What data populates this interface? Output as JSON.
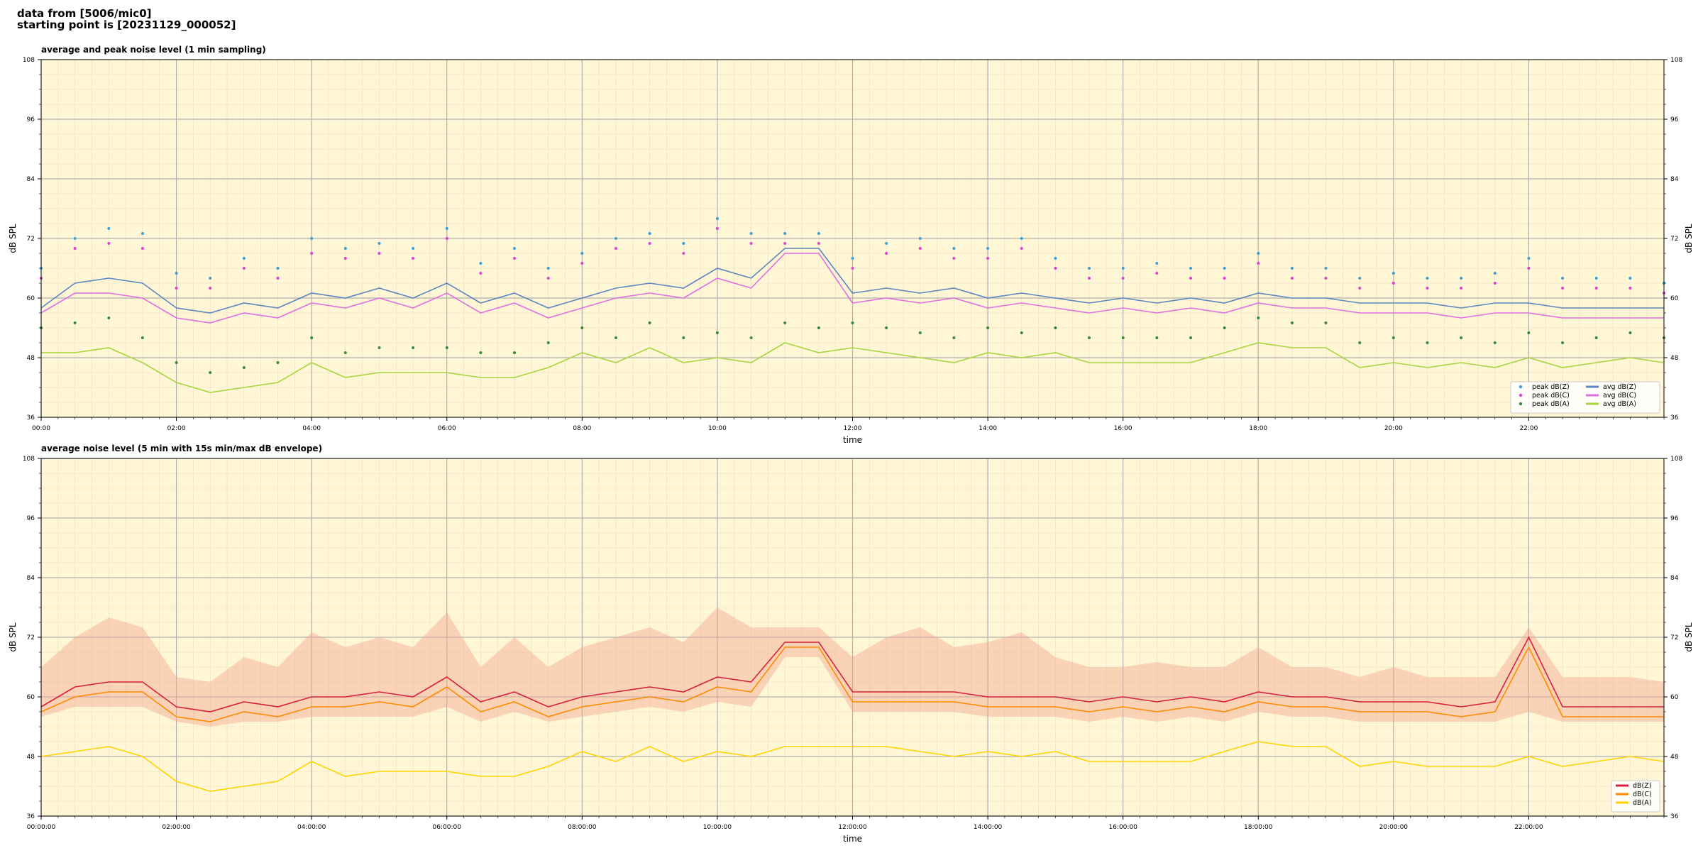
{
  "header": {
    "line1": "data from [5006/mic0]",
    "line2": "starting point is [20231129_000052]"
  },
  "colors": {
    "background_plot": "#fff6d6",
    "peak_z": "#3a9fd8",
    "peak_c": "#e040d0",
    "peak_a": "#3a8a3a",
    "avg_z": "#5b86c0",
    "avg_c": "#e070e0",
    "avg_a": "#a8d440",
    "env": "#f4a890",
    "db_z": "#d8203c",
    "db_c": "#ff8a00",
    "db_a": "#ffd400"
  },
  "chart_data": [
    {
      "type": "line",
      "title": "average and peak noise level (1 min sampling)",
      "xlabel": "time",
      "ylabel": "dB SPL",
      "ylim": [
        36,
        108
      ],
      "xlim_hours": [
        0,
        24
      ],
      "yticks": [
        "36",
        "48",
        "60",
        "72",
        "84",
        "96",
        "108"
      ],
      "xticks": [
        "00:00",
        "02:00",
        "04:00",
        "06:00",
        "08:00",
        "10:00",
        "12:00",
        "14:00",
        "16:00",
        "18:00",
        "20:00",
        "22:00"
      ],
      "grid": true,
      "legend_position": "bottom-right",
      "legend": [
        {
          "label": "peak dB(Z)",
          "kind": "marker",
          "color_key": "peak_z"
        },
        {
          "label": "peak dB(C)",
          "kind": "marker",
          "color_key": "peak_c"
        },
        {
          "label": "peak dB(A)",
          "kind": "marker",
          "color_key": "peak_a"
        },
        {
          "label": "avg dB(Z)",
          "kind": "line",
          "color_key": "avg_z"
        },
        {
          "label": "avg dB(C)",
          "kind": "line",
          "color_key": "avg_c"
        },
        {
          "label": "avg dB(A)",
          "kind": "line",
          "color_key": "avg_a"
        }
      ],
      "x": [
        0.0,
        0.5,
        1.0,
        1.5,
        2.0,
        2.5,
        3.0,
        3.5,
        4.0,
        4.5,
        5.0,
        5.5,
        6.0,
        6.5,
        7.0,
        7.5,
        8.0,
        8.5,
        9.0,
        9.5,
        10.0,
        10.5,
        11.0,
        11.5,
        12.0,
        12.5,
        13.0,
        13.5,
        14.0,
        14.5,
        15.0,
        15.5,
        16.0,
        16.5,
        17.0,
        17.5,
        18.0,
        18.5,
        19.0,
        19.5,
        20.0,
        20.5,
        21.0,
        21.5,
        22.0,
        22.5,
        23.0,
        23.5,
        24.0
      ],
      "series": [
        {
          "name": "avg dB(Z)",
          "color_key": "avg_z",
          "values": [
            58,
            63,
            64,
            63,
            58,
            57,
            59,
            58,
            61,
            60,
            62,
            60,
            63,
            59,
            61,
            58,
            60,
            62,
            63,
            62,
            66,
            64,
            70,
            70,
            61,
            62,
            61,
            62,
            60,
            61,
            60,
            59,
            60,
            59,
            60,
            59,
            61,
            60,
            60,
            59,
            59,
            59,
            58,
            59,
            59,
            58,
            58,
            58,
            58
          ]
        },
        {
          "name": "avg dB(C)",
          "color_key": "avg_c",
          "values": [
            57,
            61,
            61,
            60,
            56,
            55,
            57,
            56,
            59,
            58,
            60,
            58,
            61,
            57,
            59,
            56,
            58,
            60,
            61,
            60,
            64,
            62,
            69,
            69,
            59,
            60,
            59,
            60,
            58,
            59,
            58,
            57,
            58,
            57,
            58,
            57,
            59,
            58,
            58,
            57,
            57,
            57,
            56,
            57,
            57,
            56,
            56,
            56,
            56
          ]
        },
        {
          "name": "avg dB(A)",
          "color_key": "avg_a",
          "values": [
            49,
            49,
            50,
            47,
            43,
            41,
            42,
            43,
            47,
            44,
            45,
            45,
            45,
            44,
            44,
            46,
            49,
            47,
            50,
            47,
            48,
            47,
            51,
            49,
            50,
            49,
            48,
            47,
            49,
            48,
            49,
            47,
            47,
            47,
            47,
            49,
            51,
            50,
            50,
            46,
            47,
            46,
            47,
            46,
            48,
            46,
            47,
            48,
            47
          ]
        },
        {
          "name": "peak dB(Z)",
          "color_key": "peak_z",
          "kind": "scatter",
          "values": [
            66,
            72,
            74,
            73,
            65,
            64,
            68,
            66,
            72,
            70,
            71,
            70,
            74,
            67,
            70,
            66,
            69,
            72,
            73,
            71,
            76,
            73,
            73,
            73,
            68,
            71,
            72,
            70,
            70,
            72,
            68,
            66,
            66,
            67,
            66,
            66,
            69,
            66,
            66,
            64,
            65,
            64,
            64,
            65,
            68,
            64,
            64,
            64,
            63
          ]
        },
        {
          "name": "peak dB(C)",
          "color_key": "peak_c",
          "kind": "scatter",
          "values": [
            64,
            70,
            71,
            70,
            62,
            62,
            66,
            64,
            69,
            68,
            69,
            68,
            72,
            65,
            68,
            64,
            67,
            70,
            71,
            69,
            74,
            71,
            71,
            71,
            66,
            69,
            70,
            68,
            68,
            70,
            66,
            64,
            64,
            65,
            64,
            64,
            67,
            64,
            64,
            62,
            63,
            62,
            62,
            63,
            66,
            62,
            62,
            62,
            61
          ]
        },
        {
          "name": "peak dB(A)",
          "color_key": "peak_a",
          "kind": "scatter",
          "values": [
            54,
            55,
            56,
            52,
            47,
            45,
            46,
            47,
            52,
            49,
            50,
            50,
            50,
            49,
            49,
            51,
            54,
            52,
            55,
            52,
            53,
            52,
            55,
            54,
            55,
            54,
            53,
            52,
            54,
            53,
            54,
            52,
            52,
            52,
            52,
            54,
            56,
            55,
            55,
            51,
            52,
            51,
            52,
            51,
            53,
            51,
            52,
            53,
            52
          ]
        }
      ]
    },
    {
      "type": "line",
      "title": "average noise level (5 min with 15s min/max dB envelope)",
      "xlabel": "time",
      "ylabel": "dB SPL",
      "ylim": [
        36,
        108
      ],
      "xlim_hours": [
        0,
        24
      ],
      "yticks": [
        "36",
        "48",
        "60",
        "72",
        "84",
        "96",
        "108"
      ],
      "xticks": [
        "00:00:00",
        "02:00:00",
        "04:00:00",
        "06:00:00",
        "08:00:00",
        "10:00:00",
        "12:00:00",
        "14:00:00",
        "16:00:00",
        "18:00:00",
        "20:00:00",
        "22:00:00"
      ],
      "grid": true,
      "legend_position": "bottom-right",
      "legend": [
        {
          "label": "dB(Z)",
          "kind": "line",
          "color_key": "db_z"
        },
        {
          "label": "dB(C)",
          "kind": "line",
          "color_key": "db_c"
        },
        {
          "label": "dB(A)",
          "kind": "line",
          "color_key": "db_a"
        }
      ],
      "x": [
        0.0,
        0.5,
        1.0,
        1.5,
        2.0,
        2.5,
        3.0,
        3.5,
        4.0,
        4.5,
        5.0,
        5.5,
        6.0,
        6.5,
        7.0,
        7.5,
        8.0,
        8.5,
        9.0,
        9.5,
        10.0,
        10.5,
        11.0,
        11.5,
        12.0,
        12.5,
        13.0,
        13.5,
        14.0,
        14.5,
        15.0,
        15.5,
        16.0,
        16.5,
        17.0,
        17.5,
        18.0,
        18.5,
        19.0,
        19.5,
        20.0,
        20.5,
        21.0,
        21.5,
        22.0,
        22.5,
        23.0,
        23.5,
        24.0
      ],
      "series": [
        {
          "name": "dB(Z)",
          "color_key": "db_z",
          "values": [
            58,
            62,
            63,
            63,
            58,
            57,
            59,
            58,
            60,
            60,
            61,
            60,
            64,
            59,
            61,
            58,
            60,
            61,
            62,
            61,
            64,
            63,
            71,
            71,
            61,
            61,
            61,
            61,
            60,
            60,
            60,
            59,
            60,
            59,
            60,
            59,
            61,
            60,
            60,
            59,
            59,
            59,
            58,
            59,
            72,
            58,
            58,
            58,
            58
          ]
        },
        {
          "name": "dB(C)",
          "color_key": "db_c",
          "values": [
            57,
            60,
            61,
            61,
            56,
            55,
            57,
            56,
            58,
            58,
            59,
            58,
            62,
            57,
            59,
            56,
            58,
            59,
            60,
            59,
            62,
            61,
            70,
            70,
            59,
            59,
            59,
            59,
            58,
            58,
            58,
            57,
            58,
            57,
            58,
            57,
            59,
            58,
            58,
            57,
            57,
            57,
            56,
            57,
            70,
            56,
            56,
            56,
            56
          ]
        },
        {
          "name": "dB(A)",
          "color_key": "db_a",
          "values": [
            48,
            49,
            50,
            48,
            43,
            41,
            42,
            43,
            47,
            44,
            45,
            45,
            45,
            44,
            44,
            46,
            49,
            47,
            50,
            47,
            49,
            48,
            50,
            50,
            50,
            50,
            49,
            48,
            49,
            48,
            49,
            47,
            47,
            47,
            47,
            49,
            51,
            50,
            50,
            46,
            47,
            46,
            46,
            46,
            48,
            46,
            47,
            48,
            47
          ]
        },
        {
          "name": "max envelope",
          "color_key": "env",
          "kind": "band-upper",
          "values": [
            66,
            72,
            76,
            74,
            64,
            63,
            68,
            66,
            73,
            70,
            72,
            70,
            77,
            66,
            72,
            66,
            70,
            72,
            74,
            71,
            78,
            74,
            74,
            74,
            68,
            72,
            74,
            70,
            71,
            73,
            68,
            66,
            66,
            67,
            66,
            66,
            70,
            66,
            66,
            64,
            66,
            64,
            64,
            64,
            74,
            64,
            64,
            64,
            63
          ]
        },
        {
          "name": "min envelope",
          "color_key": "env",
          "kind": "band-lower",
          "values": [
            56,
            58,
            58,
            58,
            55,
            54,
            55,
            55,
            56,
            56,
            56,
            56,
            58,
            55,
            57,
            55,
            56,
            57,
            58,
            57,
            59,
            58,
            68,
            68,
            57,
            57,
            57,
            57,
            56,
            56,
            56,
            55,
            56,
            55,
            56,
            55,
            57,
            56,
            56,
            55,
            55,
            55,
            55,
            55,
            57,
            55,
            55,
            55,
            55
          ]
        }
      ]
    }
  ]
}
